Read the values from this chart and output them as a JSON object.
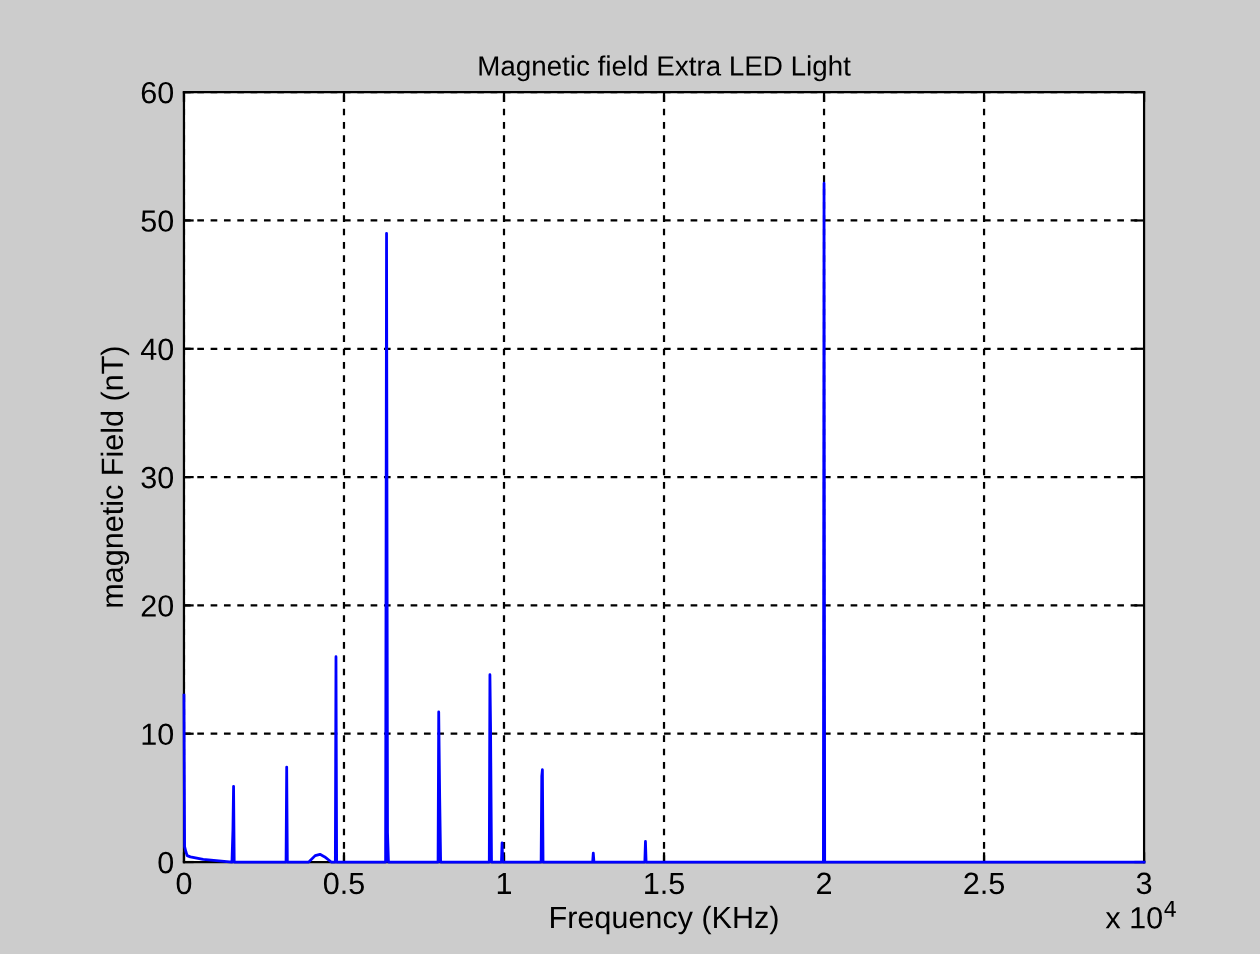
{
  "chart_data": {
    "type": "line",
    "title": "Magnetic field Extra LED Light",
    "xlabel": "Frequency (KHz)",
    "ylabel": "magnetic Field (nT)",
    "annotations": [
      "x 10$^{4}$"
    ],
    "xlim": [
      0,
      3
    ],
    "ylim": [
      0,
      60
    ],
    "xticks": [
      0,
      0.5,
      1,
      1.5,
      2,
      2.5,
      3
    ],
    "yticks": [
      0,
      10,
      20,
      30,
      40,
      50,
      60
    ],
    "grid": true,
    "line_style": "solid",
    "series": [
      {
        "color": "#0000ff",
        "x": [
          0,
          0.002,
          0.006,
          0.01,
          0.02,
          0.04,
          0.06,
          0.15,
          0.153,
          0.155,
          0.157,
          0.319,
          0.321,
          0.323,
          0.39,
          0.41,
          0.425,
          0.44,
          0.46,
          0.473,
          0.475,
          0.477,
          0.63,
          0.633,
          0.636,
          0.639,
          0.794,
          0.796,
          0.799,
          0.802,
          0.954,
          0.956,
          0.958,
          0.961,
          0.992,
          0.994,
          0.996,
          1.116,
          1.118,
          1.12,
          1.122,
          1.277,
          1.279,
          1.281,
          1.44,
          1.442,
          1.444,
          1.998,
          2,
          2.002,
          3
        ],
        "values": [
          13,
          1.2,
          0.8,
          0.5,
          0.4,
          0.3,
          0.2,
          0,
          2.5,
          5.9,
          0,
          0,
          7.4,
          0,
          0,
          0.5,
          0.6,
          0.4,
          0,
          0,
          16.0,
          0,
          0,
          49,
          2.3,
          0,
          0,
          11.7,
          5.1,
          0,
          0,
          14.6,
          10.5,
          0,
          0,
          1.5,
          0,
          0,
          6.7,
          7.2,
          0,
          0,
          0.7,
          0,
          0,
          1.6,
          0,
          0,
          52.9,
          0,
          0
        ]
      }
    ]
  }
}
